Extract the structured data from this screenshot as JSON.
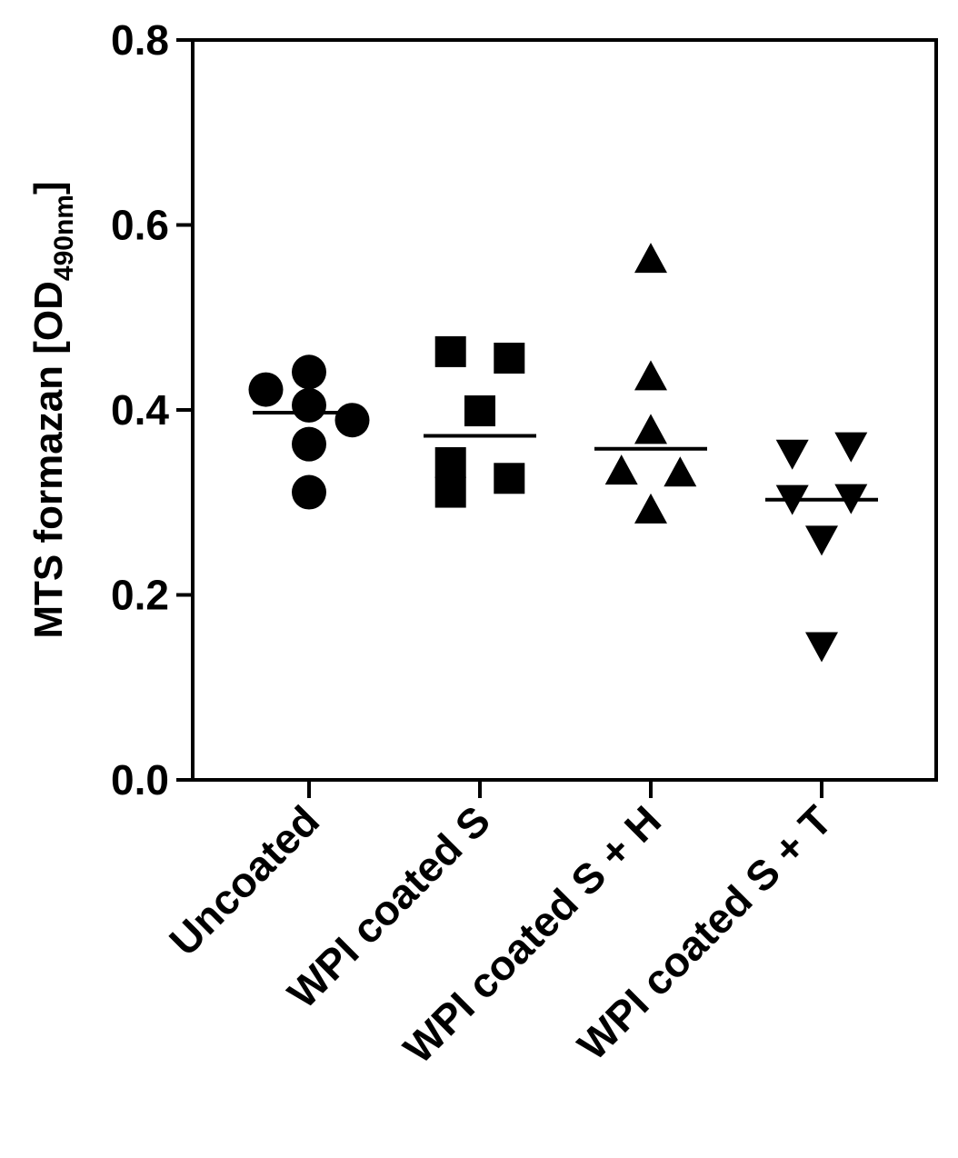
{
  "chart_data": {
    "type": "scatter",
    "title": "",
    "ylabel": "MTS formazan [OD",
    "ylabel_subscript": "490nm",
    "ylabel_close": "]",
    "ylim": [
      0.0,
      0.8
    ],
    "yticks": [
      0.0,
      0.2,
      0.4,
      0.6,
      0.8
    ],
    "ytick_labels": [
      "0.0",
      "0.2",
      "0.4",
      "0.6",
      "0.8"
    ],
    "grid": false,
    "legend": "none",
    "categories": [
      "Uncoated",
      "WPI coated S",
      "WPI coated S + H",
      "WPI coated S + T"
    ],
    "series": [
      {
        "category": "Uncoated",
        "marker": "circle",
        "points": [
          {
            "offset": -0.25,
            "y": 0.422
          },
          {
            "offset": 0.0,
            "y": 0.441
          },
          {
            "offset": 0.0,
            "y": 0.405
          },
          {
            "offset": 0.25,
            "y": 0.389
          },
          {
            "offset": 0.0,
            "y": 0.363
          },
          {
            "offset": 0.0,
            "y": 0.311
          }
        ],
        "mean": 0.397
      },
      {
        "category": "WPI coated S",
        "marker": "square",
        "points": [
          {
            "offset": -0.17,
            "y": 0.463
          },
          {
            "offset": 0.17,
            "y": 0.456
          },
          {
            "offset": 0.0,
            "y": 0.399
          },
          {
            "offset": -0.17,
            "y": 0.343
          },
          {
            "offset": 0.17,
            "y": 0.326
          },
          {
            "offset": -0.17,
            "y": 0.311
          }
        ],
        "mean": 0.372
      },
      {
        "category": "WPI coated S + H",
        "marker": "triangle-up",
        "points": [
          {
            "offset": 0.0,
            "y": 0.562
          },
          {
            "offset": 0.0,
            "y": 0.435
          },
          {
            "offset": 0.0,
            "y": 0.377
          },
          {
            "offset": -0.17,
            "y": 0.333
          },
          {
            "offset": 0.17,
            "y": 0.331
          },
          {
            "offset": 0.0,
            "y": 0.291
          }
        ],
        "mean": 0.358
      },
      {
        "category": "WPI coated S + T",
        "marker": "triangle-down",
        "points": [
          {
            "offset": -0.17,
            "y": 0.354
          },
          {
            "offset": 0.17,
            "y": 0.362
          },
          {
            "offset": -0.17,
            "y": 0.305
          },
          {
            "offset": 0.17,
            "y": 0.306
          },
          {
            "offset": 0.0,
            "y": 0.261
          },
          {
            "offset": 0.0,
            "y": 0.146
          }
        ],
        "mean": 0.303
      }
    ],
    "colors": {
      "marker": "#000000",
      "axis": "#000000",
      "background": "#ffffff"
    }
  }
}
